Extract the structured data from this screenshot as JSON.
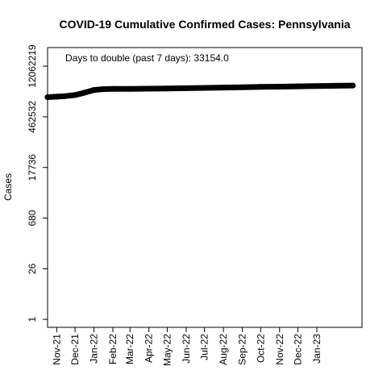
{
  "chart_data": {
    "type": "line",
    "title": "COVID-19 Cumulative Confirmed Cases: Pennsylvania",
    "xlabel": "",
    "ylabel": "Cases",
    "y_scale": "log",
    "y_ticks": [
      1,
      26,
      680,
      17736,
      462532,
      12062219
    ],
    "y_tick_labels": [
      "1",
      "26",
      "680",
      "17736",
      "462532",
      "12062219"
    ],
    "ylim": [
      0.6,
      40000000
    ],
    "x_ticks": [
      "2021-11-01",
      "2021-12-01",
      "2022-01-01",
      "2022-02-01",
      "2022-03-01",
      "2022-04-01",
      "2022-05-01",
      "2022-06-01",
      "2022-07-01",
      "2022-08-01",
      "2022-09-01",
      "2022-10-01",
      "2022-11-01",
      "2022-12-01",
      "2023-01-01"
    ],
    "x_tick_labels": [
      "Nov-21",
      "Dec-21",
      "Jan-22",
      "Feb-22",
      "Mar-22",
      "Apr-22",
      "May-22",
      "Jun-22",
      "Jul-22",
      "Aug-22",
      "Sep-22",
      "Oct-22",
      "Nov-22",
      "Dec-22",
      "Jan-23"
    ],
    "xlim": [
      "2021-10-17",
      "2023-03-16"
    ],
    "annotation": "Days to double (past 7 days): 33154.0",
    "grid": false,
    "legend": "none",
    "line_color": "#000000",
    "series": [
      {
        "x": [
          "2021-10-17",
          "2021-11-01",
          "2021-11-15",
          "2021-12-01",
          "2021-12-15",
          "2022-01-01",
          "2022-01-15",
          "2022-02-01",
          "2022-03-01",
          "2022-04-01",
          "2022-05-01",
          "2022-06-01",
          "2022-07-01",
          "2022-08-01",
          "2022-09-01",
          "2022-10-01",
          "2022-11-01",
          "2022-12-01",
          "2023-01-01",
          "2023-02-01",
          "2023-03-01"
        ],
        "y": [
          1640000,
          1690000,
          1760000,
          1880000,
          2150000,
          2600000,
          2750000,
          2790000,
          2810000,
          2830000,
          2860000,
          2920000,
          2980000,
          3050000,
          3110000,
          3170000,
          3230000,
          3290000,
          3360000,
          3420000,
          3470000
        ]
      }
    ]
  }
}
